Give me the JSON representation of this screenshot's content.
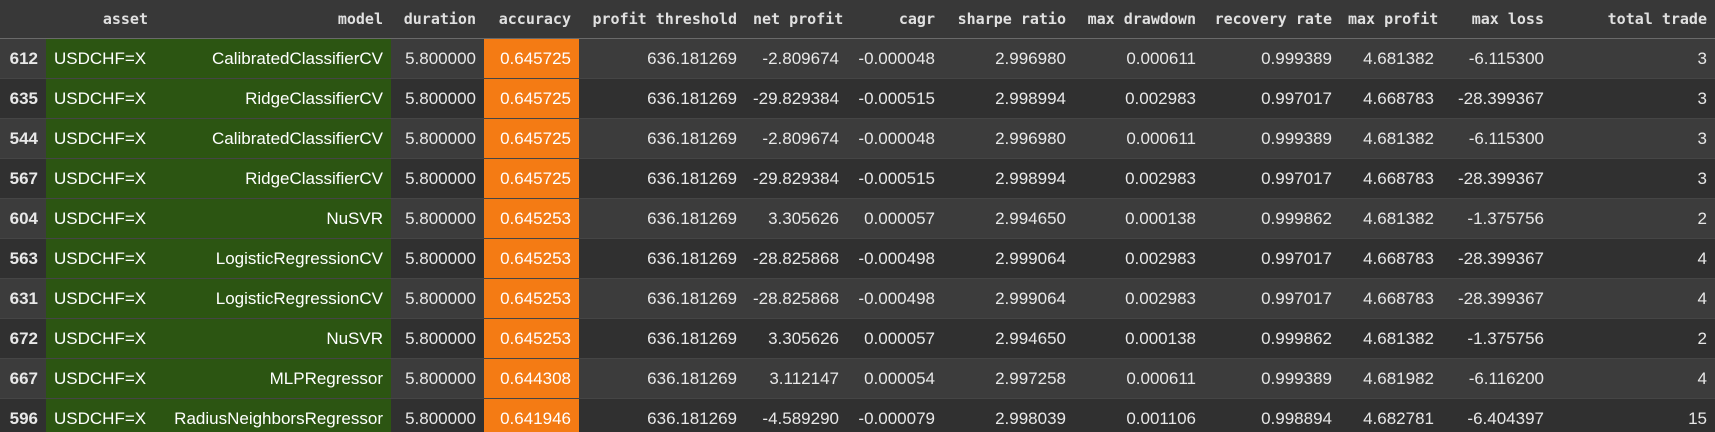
{
  "table": {
    "columns": [
      "",
      "asset",
      "model",
      "duration",
      "accuracy",
      "profit threshold",
      "net profit",
      "cagr",
      "sharpe ratio",
      "max drawdown",
      "recovery rate",
      "max profit",
      "max loss",
      "total trade"
    ],
    "rows": [
      [
        "612",
        "USDCHF=X",
        "CalibratedClassifierCV",
        "5.800000",
        "0.645725",
        "636.181269",
        "-2.809674",
        "-0.000048",
        "2.996980",
        "0.000611",
        "0.999389",
        "4.681382",
        "-6.115300",
        "3"
      ],
      [
        "635",
        "USDCHF=X",
        "RidgeClassifierCV",
        "5.800000",
        "0.645725",
        "636.181269",
        "-29.829384",
        "-0.000515",
        "2.998994",
        "0.002983",
        "0.997017",
        "4.668783",
        "-28.399367",
        "3"
      ],
      [
        "544",
        "USDCHF=X",
        "CalibratedClassifierCV",
        "5.800000",
        "0.645725",
        "636.181269",
        "-2.809674",
        "-0.000048",
        "2.996980",
        "0.000611",
        "0.999389",
        "4.681382",
        "-6.115300",
        "3"
      ],
      [
        "567",
        "USDCHF=X",
        "RidgeClassifierCV",
        "5.800000",
        "0.645725",
        "636.181269",
        "-29.829384",
        "-0.000515",
        "2.998994",
        "0.002983",
        "0.997017",
        "4.668783",
        "-28.399367",
        "3"
      ],
      [
        "604",
        "USDCHF=X",
        "NuSVR",
        "5.800000",
        "0.645253",
        "636.181269",
        "3.305626",
        "0.000057",
        "2.994650",
        "0.000138",
        "0.999862",
        "4.681382",
        "-1.375756",
        "2"
      ],
      [
        "563",
        "USDCHF=X",
        "LogisticRegressionCV",
        "5.800000",
        "0.645253",
        "636.181269",
        "-28.825868",
        "-0.000498",
        "2.999064",
        "0.002983",
        "0.997017",
        "4.668783",
        "-28.399367",
        "4"
      ],
      [
        "631",
        "USDCHF=X",
        "LogisticRegressionCV",
        "5.800000",
        "0.645253",
        "636.181269",
        "-28.825868",
        "-0.000498",
        "2.999064",
        "0.002983",
        "0.997017",
        "4.668783",
        "-28.399367",
        "4"
      ],
      [
        "672",
        "USDCHF=X",
        "NuSVR",
        "5.800000",
        "0.645253",
        "636.181269",
        "3.305626",
        "0.000057",
        "2.994650",
        "0.000138",
        "0.999862",
        "4.681382",
        "-1.375756",
        "2"
      ],
      [
        "667",
        "USDCHF=X",
        "MLPRegressor",
        "5.800000",
        "0.644308",
        "636.181269",
        "3.112147",
        "0.000054",
        "2.997258",
        "0.000611",
        "0.999389",
        "4.681982",
        "-6.116200",
        "4"
      ],
      [
        "596",
        "USDCHF=X",
        "RadiusNeighborsRegressor",
        "5.800000",
        "0.641946",
        "636.181269",
        "-4.589290",
        "-0.000079",
        "2.998039",
        "0.001106",
        "0.998894",
        "4.682781",
        "-6.404397",
        "15"
      ]
    ]
  },
  "highlight_colors": {
    "asset_model": "#2c5512",
    "accuracy": "#f47b14"
  }
}
